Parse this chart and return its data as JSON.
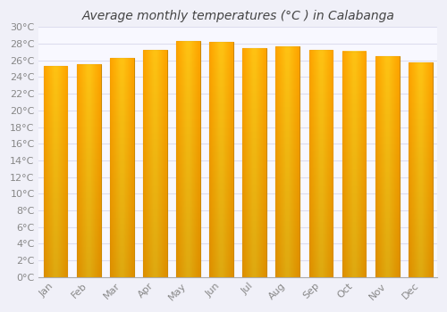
{
  "title": "Average monthly temperatures (°C ) in Calabanga",
  "months": [
    "Jan",
    "Feb",
    "Mar",
    "Apr",
    "May",
    "Jun",
    "Jul",
    "Aug",
    "Sep",
    "Oct",
    "Nov",
    "Dec"
  ],
  "values": [
    25.3,
    25.5,
    26.3,
    27.3,
    28.3,
    28.2,
    27.5,
    27.7,
    27.3,
    27.1,
    26.5,
    25.8
  ],
  "bar_color": "#FFA500",
  "bar_edge_color": "#CC8800",
  "ylim": [
    0,
    30
  ],
  "ytick_step": 2,
  "background_color": "#f0f0f8",
  "plot_bg_color": "#f8f8ff",
  "grid_color": "#ddddee",
  "title_fontsize": 10,
  "tick_fontsize": 8,
  "figsize": [
    5.0,
    3.5
  ],
  "dpi": 100
}
